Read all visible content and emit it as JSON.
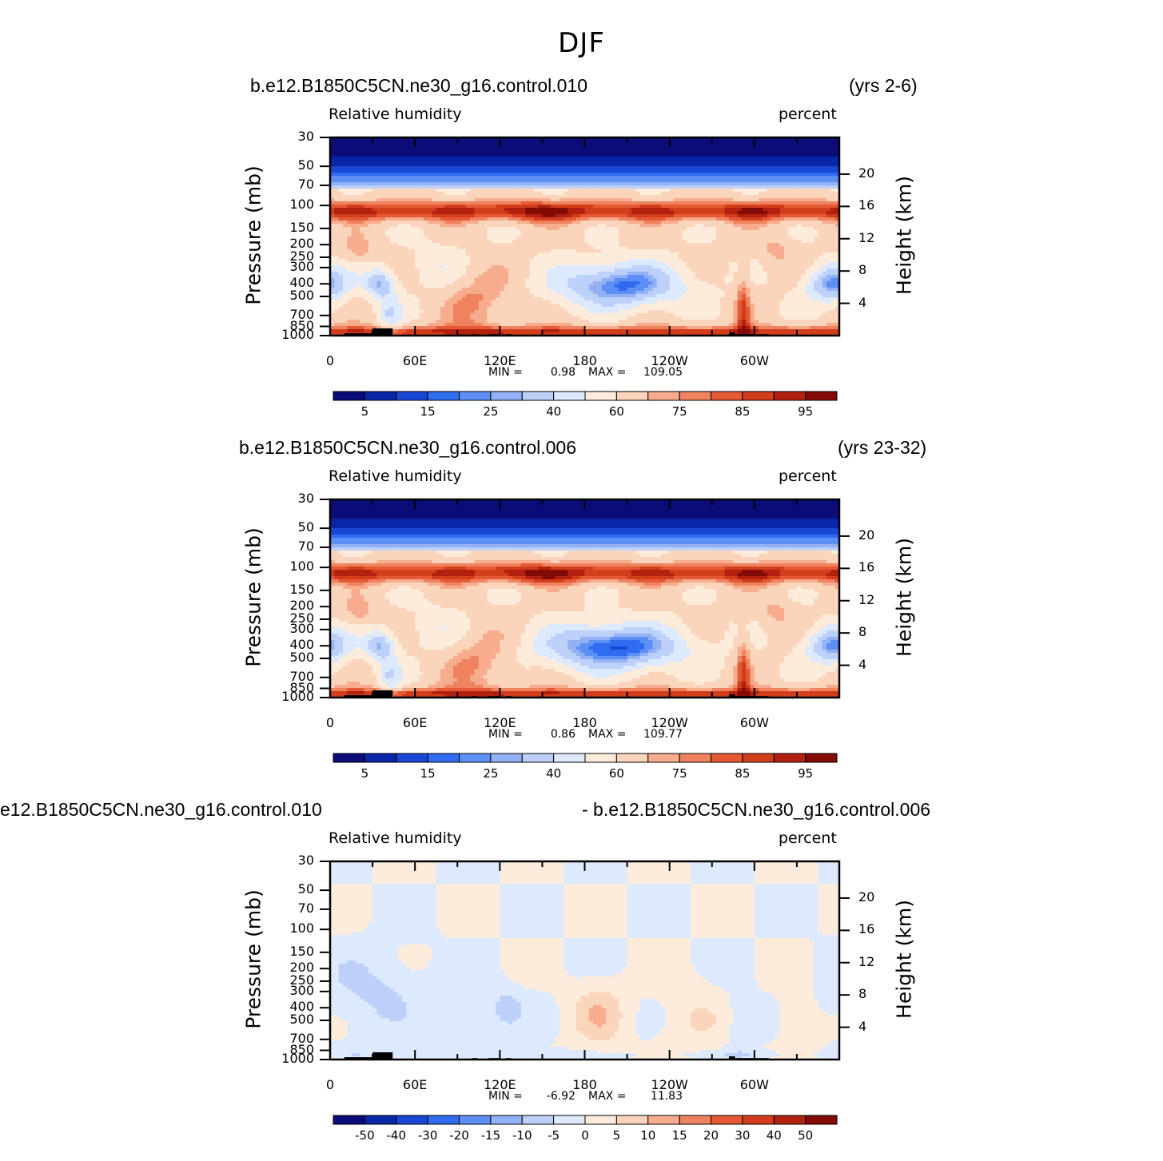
{
  "title": "DJF",
  "colors": {
    "background": "#ffffff",
    "terrain": "#000000",
    "rh_palette": [
      "#0c0c78",
      "#0a26a8",
      "#1947d6",
      "#2f6cf0",
      "#5d8ff4",
      "#93b1f5",
      "#bcd0fa",
      "#dde9fd",
      "#fdecdc",
      "#fbd4bc",
      "#f7ad8d",
      "#f0835f",
      "#e55a34",
      "#d23e1c",
      "#b22010",
      "#840a05"
    ],
    "diff_palette": [
      "#0c0c78",
      "#0a26a8",
      "#1947d6",
      "#2f6cf0",
      "#5d8ff4",
      "#93b1f5",
      "#bcd0fa",
      "#dde9fd",
      "#fdecdc",
      "#fbd4bc",
      "#f7ad8d",
      "#f0835f",
      "#e55a34",
      "#d23e1c",
      "#b22010",
      "#840a05"
    ]
  },
  "panels": [
    {
      "left_title": "b.e12.B1850C5CN.ne30_g16.control.010",
      "right_title": "(yrs 2-6)",
      "variable": "Relative  humidity",
      "units": "percent",
      "y_label": "Pressure  (mb)",
      "y2_label": "Height  (km)",
      "min_label": "MIN =",
      "min_value": "0.98",
      "max_label": "MAX =",
      "max_value": "109.05",
      "colorbar_labels": [
        "5",
        "15",
        "25",
        "40",
        "60",
        "75",
        "85",
        "95"
      ],
      "field": "control010"
    },
    {
      "left_title": "b.e12.B1850C5CN.ne30_g16.control.006",
      "right_title": "(yrs 23-32)",
      "variable": "Relative  humidity",
      "units": "percent",
      "y_label": "Pressure  (mb)",
      "y2_label": "Height  (km)",
      "min_label": "MIN =",
      "min_value": "0.86",
      "max_label": "MAX =",
      "max_value": "109.77",
      "colorbar_labels": [
        "5",
        "15",
        "25",
        "40",
        "60",
        "75",
        "85",
        "95"
      ],
      "field": "control006"
    },
    {
      "left_title": "e12.B1850C5CN.ne30_g16.control.010",
      "right_title": "- b.e12.B1850C5CN.ne30_g16.control.006",
      "variable": "Relative  humidity",
      "units": "percent",
      "y_label": "Pressure  (mb)",
      "y2_label": "Height  (km)",
      "min_label": "MIN =",
      "min_value": "-6.92",
      "max_label": "MAX =",
      "max_value": "11.83",
      "colorbar_labels": [
        "-50",
        "-40",
        "-30",
        "-20",
        "-15",
        "-10",
        "-5",
        "0",
        "5",
        "10",
        "15",
        "20",
        "30",
        "40",
        "50"
      ],
      "field": "difference"
    }
  ],
  "chart_data": {
    "type": "heatmap",
    "title": "DJF",
    "xlabel": "",
    "ylabel": "Pressure  (mb)",
    "y2label": "Height  (km)",
    "x_ticks": [
      "0",
      "60E",
      "120E",
      "180",
      "120W",
      "60W"
    ],
    "x_tick_lon": [
      0,
      60,
      120,
      180,
      240,
      300
    ],
    "xlim": [
      0,
      360
    ],
    "pressure_ticks": [
      "30",
      "50",
      "70",
      "100",
      "150",
      "200",
      "250",
      "300",
      "400",
      "500",
      "700",
      "850",
      "1000"
    ],
    "pressure_values": [
      30,
      50,
      70,
      100,
      150,
      200,
      250,
      300,
      400,
      500,
      700,
      850,
      1000
    ],
    "height_ticks": [
      "20",
      "16",
      "12",
      "8",
      "4"
    ],
    "height_km": [
      20,
      16,
      12,
      8,
      4
    ],
    "ylim": [
      1000,
      30
    ],
    "rh_levels": [
      5,
      10,
      15,
      20,
      25,
      30,
      40,
      50,
      60,
      70,
      75,
      80,
      85,
      90,
      95
    ],
    "diff_levels": [
      -50,
      -40,
      -30,
      -20,
      -15,
      -10,
      -5,
      0,
      5,
      10,
      15,
      20,
      30,
      40,
      50
    ]
  }
}
